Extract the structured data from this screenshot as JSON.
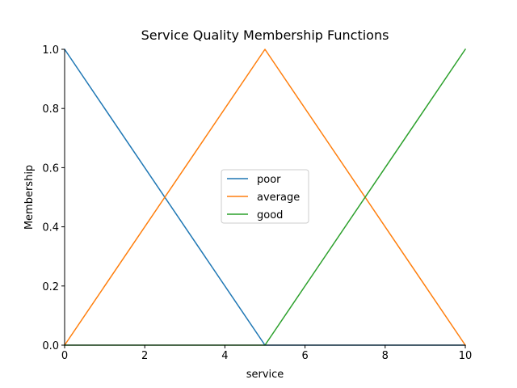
{
  "chart_data": {
    "type": "line",
    "title": "Service Quality Membership Functions",
    "xlabel": "service",
    "ylabel": "Membership",
    "xlim": [
      0,
      10
    ],
    "ylim": [
      0,
      1
    ],
    "xticks": [
      0,
      2,
      4,
      6,
      8,
      10
    ],
    "yticks": [
      0.0,
      0.2,
      0.4,
      0.6,
      0.8,
      1.0
    ],
    "ytick_labels": [
      "0.0",
      "0.2",
      "0.4",
      "0.6",
      "0.8",
      "1.0"
    ],
    "grid": false,
    "legend_position": "center",
    "series": [
      {
        "name": "poor",
        "color": "#1f77b4",
        "x": [
          0,
          5,
          10
        ],
        "y": [
          1,
          0,
          0
        ]
      },
      {
        "name": "average",
        "color": "#ff7f0e",
        "x": [
          0,
          5,
          10
        ],
        "y": [
          0,
          1,
          0
        ]
      },
      {
        "name": "good",
        "color": "#2ca02c",
        "x": [
          0,
          5,
          10
        ],
        "y": [
          0,
          0,
          1
        ]
      }
    ]
  }
}
